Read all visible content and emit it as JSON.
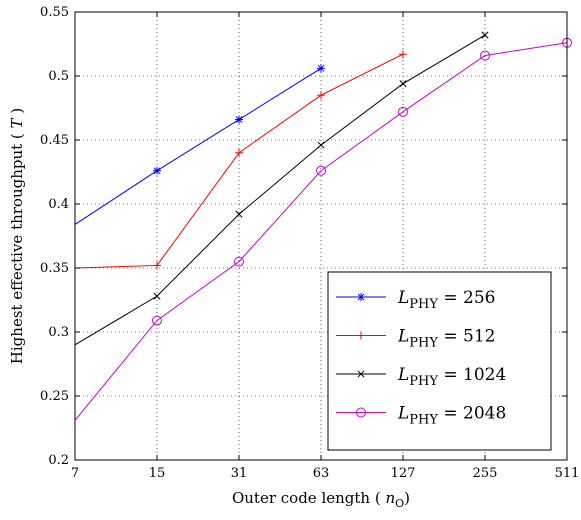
{
  "chart_data": {
    "type": "line",
    "xlabel": "Outer code length ( n_O)",
    "ylabel": "Highest effective throughput ( T )",
    "x_scale": "log2",
    "x_ticks": [
      "7",
      "15",
      "31",
      "63",
      "127",
      "255",
      "511"
    ],
    "x_tick_values": [
      7,
      15,
      31,
      63,
      127,
      255,
      511
    ],
    "xlim": [
      7,
      511
    ],
    "ylim": [
      0.2,
      0.55
    ],
    "y_ticks": [
      "0.2",
      "0.25",
      "0.3",
      "0.35",
      "0.4",
      "0.45",
      "0.5",
      "0.55"
    ],
    "y_tick_values": [
      0.2,
      0.25,
      0.3,
      0.35,
      0.4,
      0.45,
      0.5,
      0.55
    ],
    "grid": true,
    "legend_position": "bottom-right",
    "series": [
      {
        "name": "L_PHY = 256",
        "label_main": "L",
        "label_sub": "PHY",
        "label_rest": " = 256",
        "color": "#0000ff",
        "marker": "asterisk",
        "x": [
          7,
          15,
          31,
          63
        ],
        "y": [
          0.384,
          0.426,
          0.466,
          0.506
        ],
        "markers_on": [
          false,
          true,
          true,
          true
        ]
      },
      {
        "name": "L_PHY = 512",
        "label_main": "L",
        "label_sub": "PHY",
        "label_rest": " = 512",
        "color": "#ff0000",
        "marker": "plus",
        "x": [
          7,
          15,
          31,
          63,
          127
        ],
        "y": [
          0.35,
          0.352,
          0.44,
          0.485,
          0.517
        ],
        "markers_on": [
          false,
          true,
          true,
          true,
          true
        ]
      },
      {
        "name": "L_PHY = 1024",
        "label_main": "L",
        "label_sub": "PHY",
        "label_rest": " = 1024",
        "color": "#000000",
        "marker": "cross",
        "x": [
          7,
          15,
          31,
          63,
          127,
          255
        ],
        "y": [
          0.29,
          0.328,
          0.392,
          0.446,
          0.494,
          0.532
        ],
        "markers_on": [
          false,
          true,
          true,
          true,
          true,
          true
        ]
      },
      {
        "name": "L_PHY = 2048",
        "label_main": "L",
        "label_sub": "PHY",
        "label_rest": " = 2048",
        "color": "#cc00cc",
        "marker": "circle",
        "x": [
          7,
          15,
          31,
          63,
          127,
          255,
          511
        ],
        "y": [
          0.231,
          0.309,
          0.355,
          0.426,
          0.472,
          0.516,
          0.526
        ],
        "markers_on": [
          false,
          true,
          true,
          true,
          true,
          true,
          true
        ]
      }
    ]
  }
}
